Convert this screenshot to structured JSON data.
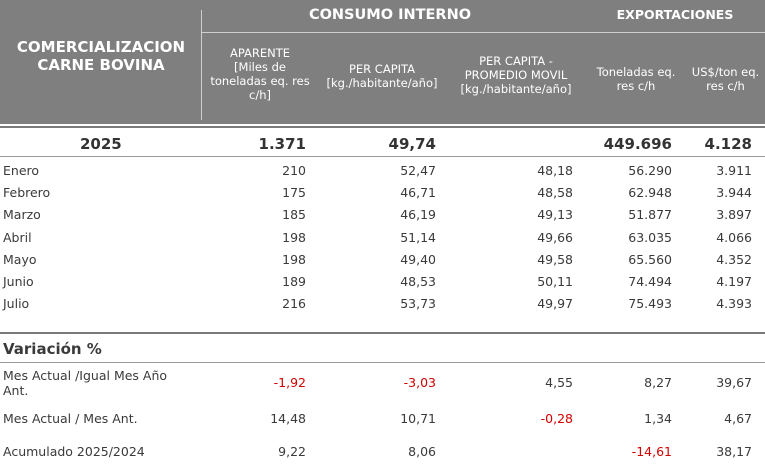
{
  "header": {
    "title_lines": [
      "COMERCIALIZACION",
      "CARNE BOVINA"
    ],
    "consumo_interno": "CONSUMO INTERNO",
    "exportaciones": "EXPORTACIONES",
    "col_aparente": [
      "APARENTE",
      "[Miles de",
      "toneladas eq. res",
      "c/h]"
    ],
    "col_per_capita": [
      "PER CAPITA",
      "[kg./habitante/año]"
    ],
    "col_promedio": [
      "PER CAPITA -",
      "PROMEDIO MOVIL",
      "[kg./habitante/año]"
    ],
    "col_toneladas": [
      "Toneladas eq.",
      "res c/h"
    ],
    "col_usd": [
      "US$/ton eq.",
      "res c/h"
    ]
  },
  "total": {
    "label": "2025",
    "aparente": "1.371",
    "per_capita": "49,74",
    "promedio": "",
    "toneladas": "449.696",
    "usd": "4.128"
  },
  "months": [
    {
      "label": "Enero",
      "aparente": "210",
      "per_capita": "52,47",
      "promedio": "48,18",
      "toneladas": "56.290",
      "usd": "3.911"
    },
    {
      "label": "Febrero",
      "aparente": "175",
      "per_capita": "46,71",
      "promedio": "48,58",
      "toneladas": "62.948",
      "usd": "3.944"
    },
    {
      "label": "Marzo",
      "aparente": "185",
      "per_capita": "46,19",
      "promedio": "49,13",
      "toneladas": "51.877",
      "usd": "3.897"
    },
    {
      "label": "Abril",
      "aparente": "198",
      "per_capita": "51,14",
      "promedio": "49,66",
      "toneladas": "63.035",
      "usd": "4.066"
    },
    {
      "label": "Mayo",
      "aparente": "198",
      "per_capita": "49,40",
      "promedio": "49,58",
      "toneladas": "65.560",
      "usd": "4.352"
    },
    {
      "label": "Junio",
      "aparente": "189",
      "per_capita": "48,53",
      "promedio": "50,11",
      "toneladas": "74.494",
      "usd": "4.197"
    },
    {
      "label": "Julio",
      "aparente": "216",
      "per_capita": "53,73",
      "promedio": "49,97",
      "toneladas": "75.493",
      "usd": "4.393"
    }
  ],
  "variacion": {
    "title": "Variación  %",
    "rows": [
      {
        "label_lines": [
          "Mes Actual /Igual Mes Año",
          "Ant."
        ],
        "aparente": "-1,92",
        "per_capita": "-3,03",
        "promedio": "4,55",
        "toneladas": "8,27",
        "usd": "39,67"
      },
      {
        "label_lines": [
          "Mes Actual / Mes Ant."
        ],
        "aparente": "14,48",
        "per_capita": "10,71",
        "promedio": "-0,28",
        "toneladas": "1,34",
        "usd": "4,67"
      },
      {
        "label_lines": [
          "Acumulado 2025/2024"
        ],
        "aparente": "9,22",
        "per_capita": "8,06",
        "promedio": "",
        "toneladas": "-14,61",
        "usd": "38,17"
      }
    ]
  },
  "colors": {
    "header_bg": "#7f7f7f",
    "negative": "#d40000",
    "text": "#3a3a3a"
  }
}
